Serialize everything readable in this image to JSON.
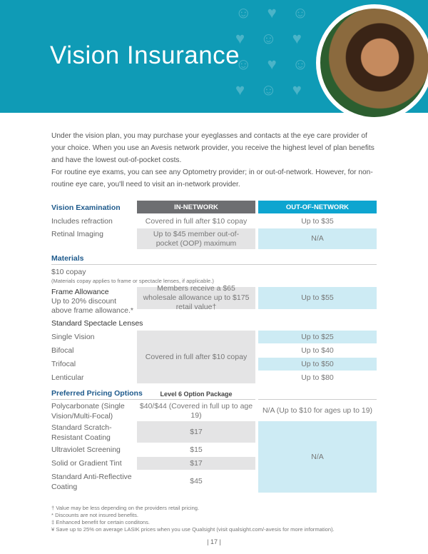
{
  "header": {
    "title": "Vision Insurance"
  },
  "intro": [
    "Under the vision plan, you may purchase your eyeglasses and contacts at the eye care provider of your choice. When you use an Avesis network provider, you receive the highest level of plan benefits and have the lowest out-of-pocket costs.",
    "For routine eye exams, you can see any Optometry provider; in or out-of-network. However, for non-routine eye care, you'll need to visit an in-network provider."
  ],
  "columns": {
    "in": "IN-NETWORK",
    "out": "OUT-OF-NETWORK"
  },
  "exam": {
    "title": "Vision Examination",
    "rows": [
      {
        "label": "Includes refraction",
        "in": "Covered in full after $10 copay",
        "out": "Up to $35"
      },
      {
        "label": "Retinal Imaging",
        "in": "Up to $45 member out-of-pocket (OOP) maximum",
        "out": "N/A"
      }
    ]
  },
  "materials": {
    "title": "Materials",
    "copay": "$10 copay",
    "note": "(Materials copay applies to frame or spectacle lenses, if applicable.)",
    "frame": {
      "label": "Frame Allowance",
      "sub": "Up to 20% discount above frame allowance.*",
      "in": "Members receive a $65 wholesale allowance up to $175 retail value†",
      "out": "Up to $55"
    },
    "lenses": {
      "title": "Standard Spectacle Lenses",
      "in": "Covered in full after $10 copay",
      "rows": [
        {
          "label": "Single Vision",
          "out": "Up to $25"
        },
        {
          "label": "Bifocal",
          "out": "Up to $40"
        },
        {
          "label": "Trifocal",
          "out": "Up to $50"
        },
        {
          "label": "Lenticular",
          "out": "Up to $80"
        }
      ]
    }
  },
  "pricing": {
    "title": "Preferred Pricing Options",
    "package": "Level 6 Option Package",
    "out_na": "N/A",
    "rows": [
      {
        "label": "Polycarbonate (Single Vision/Multi-Focal)",
        "in": "$40/$44 (Covered in full up to age 19)",
        "out": "N/A (Up to $10 for ages up to 19)"
      },
      {
        "label": "Standard Scratch-Resistant Coating",
        "in": "$17"
      },
      {
        "label": "Ultraviolet Screening",
        "in": "$15"
      },
      {
        "label": "Solid or Gradient Tint",
        "in": "$17"
      },
      {
        "label": "Standard Anti-Reflective Coating",
        "in": "$45"
      }
    ]
  },
  "footnotes": [
    "† Value may be less depending on the providers retail pricing.",
    "* Discounts are not insured benefits.",
    "‡ Enhanced benefit for certain conditons.",
    "¥ Save up to 25% on average LASIK prices when you use Qualsight (visit qualsight.com/-avesis for more information)."
  ],
  "page": "| 17 |",
  "colors": {
    "teal": "#0f9bb6",
    "navy": "#1e5a8c",
    "gray_header": "#6d6e71",
    "out_header": "#0ea5d0"
  }
}
